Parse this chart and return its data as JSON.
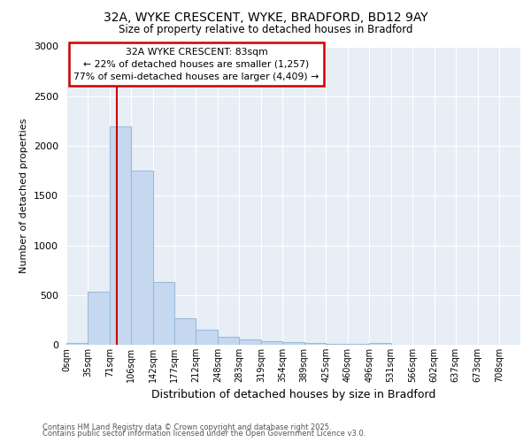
{
  "title_line1": "32A, WYKE CRESCENT, WYKE, BRADFORD, BD12 9AY",
  "title_line2": "Size of property relative to detached houses in Bradford",
  "xlabel": "Distribution of detached houses by size in Bradford",
  "ylabel": "Number of detached properties",
  "footnote1": "Contains HM Land Registry data © Crown copyright and database right 2025.",
  "footnote2": "Contains public sector information licensed under the Open Government Licence v3.0.",
  "bar_labels": [
    "0sqm",
    "35sqm",
    "71sqm",
    "106sqm",
    "142sqm",
    "177sqm",
    "212sqm",
    "248sqm",
    "283sqm",
    "319sqm",
    "354sqm",
    "389sqm",
    "425sqm",
    "460sqm",
    "496sqm",
    "531sqm",
    "566sqm",
    "602sqm",
    "637sqm",
    "673sqm",
    "708sqm"
  ],
  "bar_values": [
    20,
    530,
    2200,
    1750,
    630,
    270,
    150,
    80,
    50,
    35,
    25,
    20,
    10,
    5,
    15,
    4,
    2,
    2,
    1,
    1,
    0
  ],
  "bar_color": "#c5d8f0",
  "bar_edge_color": "#9abcda",
  "background_color": "#e8eef6",
  "grid_color": "#ffffff",
  "annotation_box_edgecolor": "#cc0000",
  "annotation_line_color": "#cc0000",
  "annotation_title": "32A WYKE CRESCENT: 83sqm",
  "annotation_line1": "← 22% of detached houses are smaller (1,257)",
  "annotation_line2": "77% of semi-detached houses are larger (4,409) →",
  "red_line_x": 83,
  "ylim": [
    0,
    3000
  ],
  "yticks": [
    0,
    500,
    1000,
    1500,
    2000,
    2500,
    3000
  ],
  "x_positions": [
    0,
    35,
    71,
    106,
    142,
    177,
    212,
    248,
    283,
    319,
    354,
    389,
    425,
    460,
    496,
    531,
    566,
    602,
    637,
    673,
    708
  ],
  "xlim_max": 743,
  "fig_bg": "#ffffff"
}
